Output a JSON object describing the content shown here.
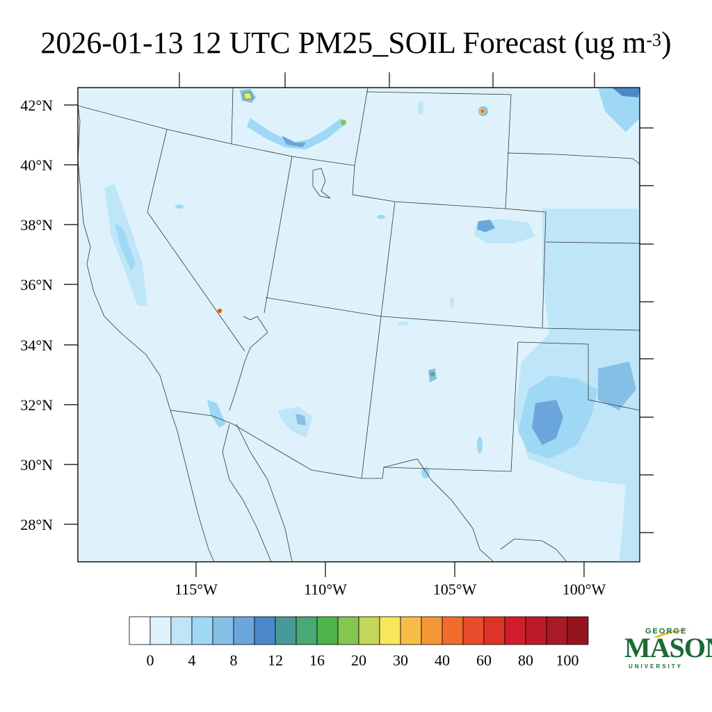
{
  "title": {
    "main": "2026-01-13 12 UTC PM25_SOIL Forecast (ug m",
    "sup": "-3",
    "close": ")"
  },
  "map": {
    "lat_labels": [
      "42°N",
      "40°N",
      "38°N",
      "36°N",
      "34°N",
      "32°N",
      "30°N",
      "28°N"
    ],
    "lon_labels": [
      "115°W",
      "110°W",
      "105°W",
      "100°W"
    ],
    "background_color": "#dff2fb"
  },
  "colorbar": {
    "labels": [
      "0",
      "4",
      "8",
      "12",
      "16",
      "20",
      "30",
      "40",
      "60",
      "80",
      "100"
    ],
    "colors": [
      "#ffffff",
      "#dff2fb",
      "#bfe6f8",
      "#9fd8f4",
      "#86bfe6",
      "#6aa6dc",
      "#4a88c8",
      "#489a98",
      "#4aa874",
      "#4cb44a",
      "#86c550",
      "#c2d65a",
      "#f6e85a",
      "#f8bc48",
      "#f69838",
      "#f26c2c",
      "#e84c2a",
      "#de3428",
      "#d21e2c",
      "#bc1c28",
      "#a81a26",
      "#941520"
    ]
  },
  "logo": {
    "top": "GEORGE",
    "main": "MASON",
    "bottom": "UNIVERSITY"
  }
}
